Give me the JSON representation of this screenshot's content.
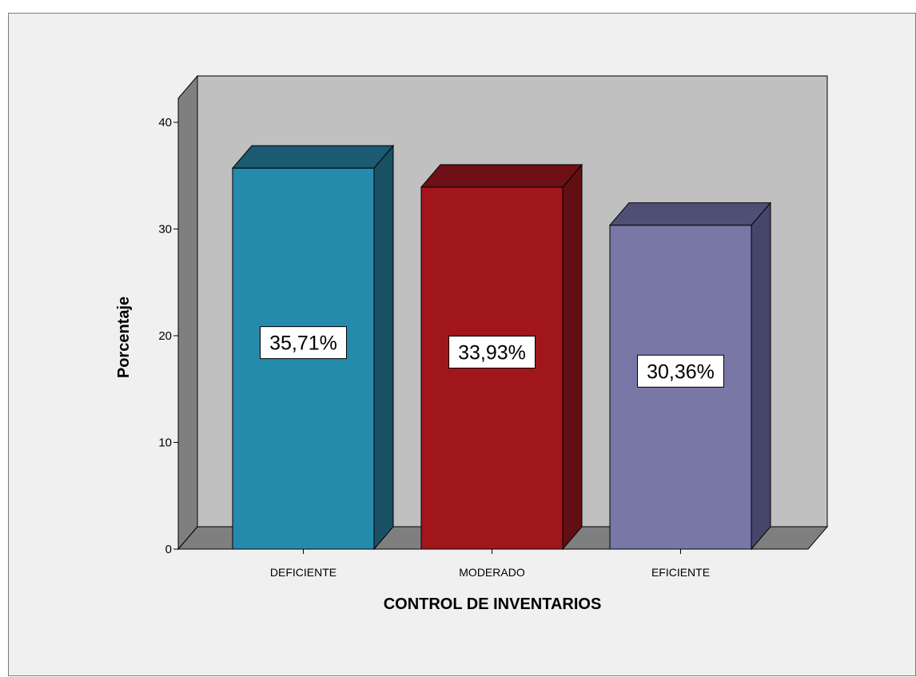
{
  "chart_data": {
    "type": "bar",
    "style": "3d",
    "categories": [
      "DEFICIENTE",
      "MODERADO",
      "EFICIENTE"
    ],
    "values": [
      35.71,
      33.93,
      30.36
    ],
    "data_labels": [
      "35,71%",
      "33,93%",
      "30,36%"
    ],
    "colors": [
      "#258bac",
      "#a1161b",
      "#7877a6"
    ],
    "side_colors": [
      "#1a5064",
      "#620f13",
      "#46466a"
    ],
    "top_colors": [
      "#1b5a70",
      "#6e1015",
      "#4f4f76"
    ],
    "xlabel": "CONTROL DE INVENTARIOS",
    "ylabel": "Porcentaje",
    "ylim": [
      0,
      40
    ],
    "yticks": [
      0,
      10,
      20,
      30,
      40
    ],
    "grid": false,
    "backwall_color": "#c0c0c0",
    "floor_color": "#7f7f7f",
    "leftwall_color": "#7f7f7f"
  }
}
